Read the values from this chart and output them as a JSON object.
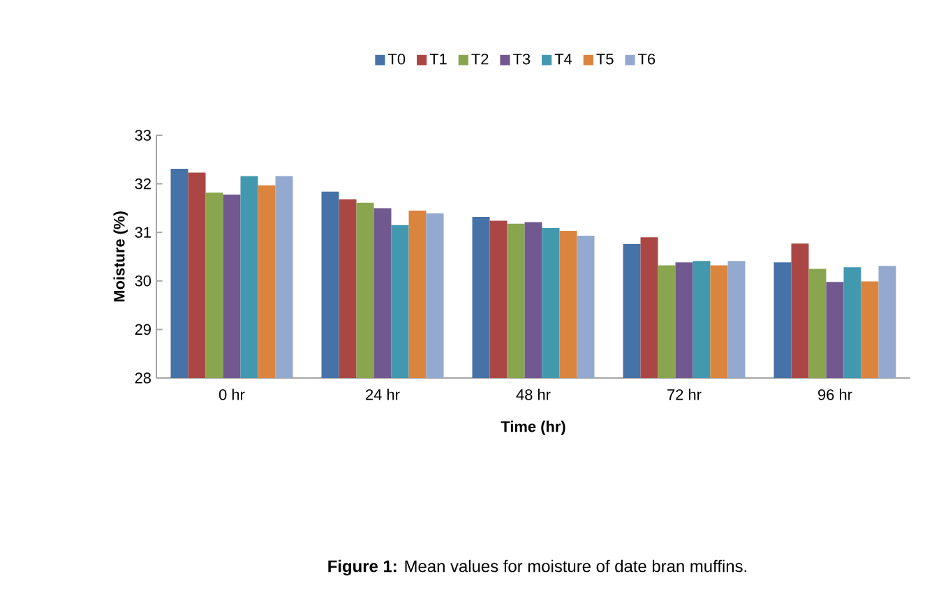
{
  "chart_data": {
    "type": "bar",
    "xlabel": "Time (hr)",
    "ylabel": "Moisture (%)",
    "categories": [
      "0 hr",
      "24 hr",
      "48 hr",
      "72 hr",
      "96 hr"
    ],
    "series": [
      {
        "name": "T0",
        "color": "#4572a7",
        "values": [
          32.31,
          31.84,
          31.32,
          30.76,
          30.38
        ]
      },
      {
        "name": "T1",
        "color": "#aa4643",
        "values": [
          32.23,
          31.68,
          31.24,
          30.9,
          30.77
        ]
      },
      {
        "name": "T2",
        "color": "#89a54e",
        "values": [
          31.82,
          31.61,
          31.18,
          30.32,
          30.25
        ]
      },
      {
        "name": "T3",
        "color": "#71588f",
        "values": [
          31.78,
          31.5,
          31.21,
          30.38,
          29.98
        ]
      },
      {
        "name": "T4",
        "color": "#4198af",
        "values": [
          32.16,
          31.15,
          31.09,
          30.41,
          30.28
        ]
      },
      {
        "name": "T5",
        "color": "#db843d",
        "values": [
          31.97,
          31.45,
          31.03,
          30.32,
          29.99
        ]
      },
      {
        "name": "T6",
        "color": "#93a9cf",
        "values": [
          32.16,
          31.39,
          30.93,
          30.41,
          30.31
        ]
      }
    ],
    "ylim": [
      28,
      33
    ],
    "yticks": [
      28,
      29,
      30,
      31,
      32,
      33
    ],
    "grid": false,
    "legend": "top",
    "annotations": [
      "**Figure 1:** Mean values for moisture of date bran muffins."
    ]
  }
}
